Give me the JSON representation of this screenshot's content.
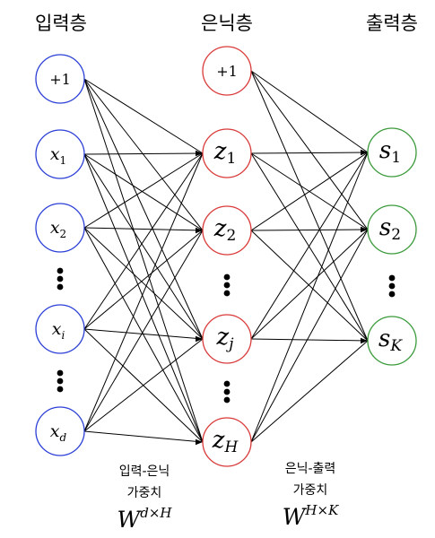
{
  "titles": {
    "input": "입력층",
    "hidden": "은닉층",
    "output": "출력층"
  },
  "colors": {
    "input": "#2b3fd6",
    "hidden": "#d93a3a",
    "output": "#3b9a3b",
    "edge": "#000000"
  },
  "input_nodes": [
    {
      "base": "+1",
      "sub": ""
    },
    {
      "base": "x",
      "sub": "1"
    },
    {
      "base": "x",
      "sub": "2"
    },
    {
      "base": "x",
      "sub": "i"
    },
    {
      "base": "x",
      "sub": "d"
    }
  ],
  "hidden_nodes": [
    {
      "base": "+1",
      "sub": ""
    },
    {
      "base": "z",
      "sub": "1"
    },
    {
      "base": "z",
      "sub": "2"
    },
    {
      "base": "z",
      "sub": "j"
    },
    {
      "base": "z",
      "sub": "H"
    }
  ],
  "output_nodes": [
    {
      "base": "s",
      "sub": "1"
    },
    {
      "base": "s",
      "sub": "2"
    },
    {
      "base": "s",
      "sub": "K"
    }
  ],
  "weights": {
    "input_hidden": {
      "line1": "입력-은닉",
      "line2": "가중치",
      "symbol": "W",
      "sup": "d×H"
    },
    "hidden_output": {
      "line1": "은닉-출력",
      "line2": "가중치",
      "symbol": "W",
      "sup": "H×K"
    }
  }
}
